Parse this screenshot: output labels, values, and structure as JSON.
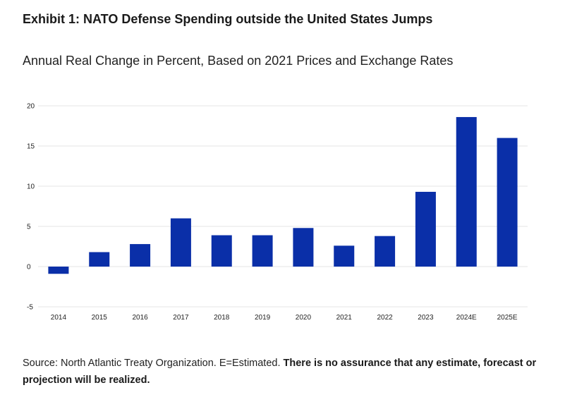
{
  "header": {
    "title": "Exhibit 1: NATO Defense Spending outside the United States Jumps",
    "subtitle": "Annual Real Change in Percent, Based on 2021 Prices and Exchange Rates"
  },
  "footer": {
    "source": "Source: North Atlantic Treaty Organization. E=Estimated.",
    "disclaimer": "There is no assurance that any estimate, forecast or projection will be realized."
  },
  "chart_data": {
    "type": "bar",
    "title": "",
    "xlabel": "",
    "ylabel": "",
    "categories": [
      "2014",
      "2015",
      "2016",
      "2017",
      "2018",
      "2019",
      "2020",
      "2021",
      "2022",
      "2023",
      "2024E",
      "2025E"
    ],
    "values": [
      -0.9,
      1.8,
      2.8,
      6.0,
      3.9,
      3.9,
      4.8,
      2.6,
      3.8,
      9.3,
      18.6,
      16.0
    ],
    "ylim": [
      -5,
      20
    ],
    "yticks": [
      20,
      15,
      10,
      5,
      0,
      -5
    ],
    "grid": true,
    "bar_color": "#0a2fa8",
    "grid_color": "#e6e6e6"
  }
}
